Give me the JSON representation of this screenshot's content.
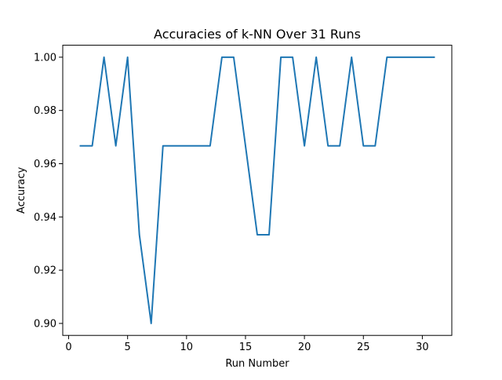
{
  "chart_data": {
    "type": "line",
    "title": "Accuracies of k-NN Over 31 Runs",
    "xlabel": "Run Number",
    "ylabel": "Accuracy",
    "xlim": [
      -0.5,
      32.5
    ],
    "ylim": [
      0.8955,
      1.0045
    ],
    "xticks": [
      0,
      5,
      10,
      15,
      20,
      25,
      30
    ],
    "xtick_labels": [
      "0",
      "5",
      "10",
      "15",
      "20",
      "25",
      "30"
    ],
    "yticks": [
      0.9,
      0.92,
      0.94,
      0.96,
      0.98,
      1.0
    ],
    "ytick_labels": [
      "0.90",
      "0.92",
      "0.94",
      "0.96",
      "0.98",
      "1.00"
    ],
    "grid": false,
    "series": [
      {
        "color": "#1f77b4",
        "x": [
          1,
          2,
          3,
          4,
          5,
          6,
          7,
          8,
          9,
          10,
          11,
          12,
          13,
          14,
          15,
          16,
          17,
          18,
          19,
          20,
          21,
          22,
          23,
          24,
          25,
          26,
          27,
          28,
          29,
          30,
          31
        ],
        "values": [
          0.9667,
          0.9667,
          1.0,
          0.9667,
          1.0,
          0.9333,
          0.9,
          0.9667,
          0.9667,
          0.9667,
          0.9667,
          0.9667,
          1.0,
          1.0,
          0.9667,
          0.9333,
          0.9333,
          1.0,
          1.0,
          0.9667,
          1.0,
          0.9667,
          0.9667,
          1.0,
          0.9667,
          0.9667,
          1.0,
          1.0,
          1.0,
          1.0,
          1.0
        ]
      }
    ]
  }
}
